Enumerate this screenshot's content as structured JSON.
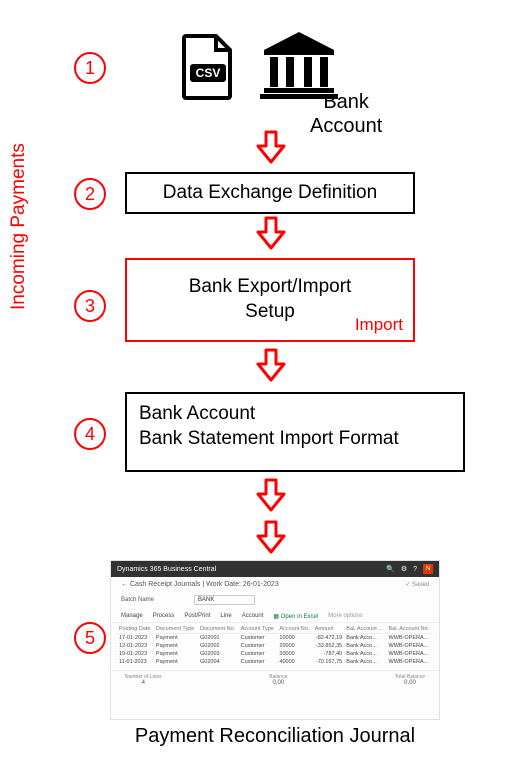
{
  "side_label": "Incoming Payments",
  "steps": {
    "s1": "1",
    "s2": "2",
    "s3": "3",
    "s4": "4",
    "s5": "5"
  },
  "bank_account_label": "Bank\nAccount",
  "box2": "Data Exchange Definition",
  "box3": "Bank Export/Import\nSetup",
  "box3_tag": "Import",
  "box4_line1": "Bank Account",
  "box4_line2": "Bank Statement Import Format",
  "footer": "Payment Reconciliation Journal",
  "arrow_color": "#ff0000",
  "circle_color": "#ff0000",
  "csv_badge": "CSV",
  "screenshot": {
    "app": "Dynamics 365 Business Central",
    "title": "Cash Receipt Journals | Work Date: 26-01-2023",
    "saved": "✓ Saved",
    "batch_label": "Batch Name",
    "batch_value": "BANK",
    "tabs": [
      "Manage",
      "Process",
      "Post/Print",
      "Line",
      "Account"
    ],
    "excel": "Open in Excel",
    "more": "More options",
    "cols": [
      "Posting Date",
      "Document Type",
      "Document No.",
      "Account Type",
      "Account No.",
      "Amount",
      "Bal. Account ...",
      "Bal. Account No."
    ],
    "rows": [
      [
        "17-01-2023",
        "Payment",
        "G02001",
        "Customer",
        "10000",
        "-82.472,19",
        "Bank Acco...",
        "WWB-OPERA..."
      ],
      [
        "12-01-2023",
        "Payment",
        "G02002",
        "Customer",
        "20000",
        "-33.852,35",
        "Bank Acco...",
        "WWB-OPERA..."
      ],
      [
        "19-01-2023",
        "Payment",
        "G02003",
        "Customer",
        "30000",
        "-787,40",
        "Bank Acco...",
        "WWB-OPERA..."
      ],
      [
        "11-01-2023",
        "Payment",
        "G02004",
        "Customer",
        "40000",
        "-70.167,75",
        "Bank Acco...",
        "WWB-OPERA..."
      ]
    ],
    "footer_labels": [
      "Number of Lines",
      "Balance",
      "Total Balance"
    ],
    "footer_values": [
      "4",
      "0,00",
      "0,00"
    ]
  }
}
